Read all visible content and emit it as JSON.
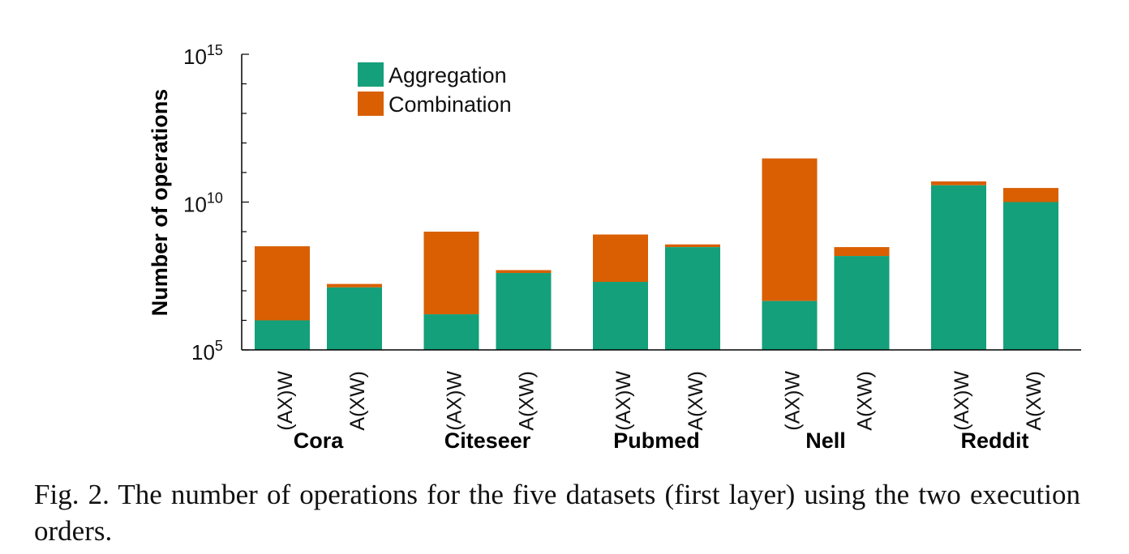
{
  "chart_data": {
    "type": "bar",
    "stacked": true,
    "log_scale_y": true,
    "ylabel": "Number of operations",
    "ylim": [
      100000,
      1000000000000000
    ],
    "yticks": [
      {
        "value": 100000,
        "base": "10",
        "exp": "5"
      },
      {
        "value": 10000000000,
        "base": "10",
        "exp": "10"
      },
      {
        "value": 1000000000000000,
        "base": "10",
        "exp": "15"
      }
    ],
    "legend": {
      "position": "top-left"
    },
    "groups": [
      {
        "name": "Cora",
        "bars": [
          {
            "label": "(AX)W",
            "aggregation": 1000000,
            "total": 320000000
          },
          {
            "label": "A(XW)",
            "aggregation": 13000000,
            "total": 17000000
          }
        ]
      },
      {
        "name": "Citeseer",
        "bars": [
          {
            "label": "(AX)W",
            "aggregation": 1600000,
            "total": 1000000000
          },
          {
            "label": "A(XW)",
            "aggregation": 40000000,
            "total": 50000000
          }
        ]
      },
      {
        "name": "Pubmed",
        "bars": [
          {
            "label": "(AX)W",
            "aggregation": 20000000,
            "total": 800000000
          },
          {
            "label": "A(XW)",
            "aggregation": 300000000,
            "total": 370000000
          }
        ]
      },
      {
        "name": "Nell",
        "bars": [
          {
            "label": "(AX)W",
            "aggregation": 4500000,
            "total": 300000000000
          },
          {
            "label": "A(XW)",
            "aggregation": 150000000,
            "total": 300000000
          }
        ]
      },
      {
        "name": "Reddit",
        "bars": [
          {
            "label": "(AX)W",
            "aggregation": 37000000000,
            "total": 50000000000
          },
          {
            "label": "A(XW)",
            "aggregation": 10000000000,
            "total": 30000000000
          }
        ]
      }
    ],
    "series": [
      {
        "name": "Aggregation",
        "color": "#14a07a"
      },
      {
        "name": "Combination",
        "color": "#d95f02"
      }
    ]
  },
  "caption": {
    "text": "Fig. 2.  The number of operations for the five datasets (first layer) using the two execution orders."
  }
}
